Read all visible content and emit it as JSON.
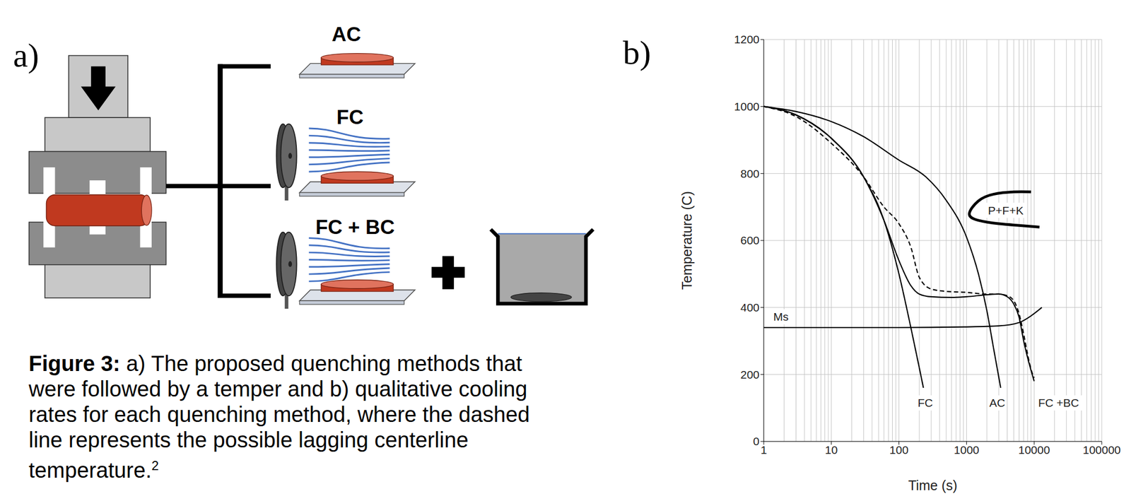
{
  "panel_a": {
    "letter": "a)",
    "methods": [
      "AC",
      "FC",
      "FC + BC"
    ]
  },
  "panel_b": {
    "letter": "b)"
  },
  "caption": {
    "label": "Figure 3:",
    "lines": [
      " a) The proposed quenching methods that",
      "were followed by a temper and b) qualitative cooling",
      "rates for each quenching method, where the dashed",
      "line represents the possible lagging centerline",
      "temperature."
    ],
    "citation": "2"
  },
  "chart_data": {
    "type": "line",
    "xlabel": "Time (s)",
    "ylabel": "Temperature (C)",
    "log": "x",
    "grid": true,
    "xlim": [
      1,
      100000
    ],
    "xticks": [
      1,
      10,
      100,
      1000,
      10000,
      100000
    ],
    "ylim": [
      0,
      1200
    ],
    "yticks": [
      0,
      200,
      400,
      600,
      800,
      1000,
      1200
    ],
    "series": [
      {
        "color": "#000000",
        "line_style": "solid",
        "x": [
          1,
          3,
          10,
          30,
          60,
          100,
          150,
          200,
          230
        ],
        "values": [
          1000,
          975,
          905,
          790,
          660,
          500,
          340,
          220,
          160
        ]
      },
      {
        "color": "#000000",
        "line_style": "solid",
        "x": [
          1,
          3,
          10,
          30,
          60,
          100,
          150,
          200,
          300,
          600,
          1000,
          2000,
          3000,
          4000,
          5000,
          6000,
          7000,
          8500,
          10000
        ],
        "values": [
          1000,
          975,
          905,
          790,
          660,
          540,
          465,
          440,
          432,
          430,
          432,
          438,
          440,
          432,
          410,
          370,
          300,
          230,
          180
        ]
      },
      {
        "color": "#000000",
        "line_style": "dashed",
        "x": [
          1,
          3,
          10,
          30,
          60,
          100,
          150,
          200,
          300,
          500,
          1000,
          2000,
          3000,
          4000,
          5000,
          6000,
          7000,
          8000,
          9000,
          10000
        ],
        "values": [
          1000,
          970,
          890,
          790,
          700,
          650,
          580,
          490,
          455,
          448,
          445,
          440,
          440,
          435,
          420,
          380,
          320,
          260,
          215,
          190
        ]
      },
      {
        "color": "#000000",
        "line_style": "solid",
        "x": [
          1,
          3,
          10,
          30,
          100,
          250,
          500,
          1000,
          1500,
          2000,
          2500,
          3200
        ],
        "values": [
          1000,
          985,
          955,
          910,
          840,
          790,
          720,
          610,
          500,
          390,
          280,
          160
        ]
      },
      {
        "color": "#000000",
        "line_style": "solid",
        "x": [
          1,
          10,
          100,
          1000,
          3000,
          6000,
          9000,
          13000
        ],
        "values": [
          340,
          340,
          340,
          342,
          345,
          355,
          375,
          400
        ]
      },
      {
        "color": "#000000",
        "line_style": "bold",
        "x": [
          9000,
          5000,
          2500,
          1500,
          1100,
          1500,
          3000,
          6000,
          12000
        ],
        "values": [
          745,
          745,
          738,
          718,
          680,
          660,
          650,
          645,
          640
        ]
      }
    ],
    "annotations": [
      {
        "text": "FC",
        "x": 245,
        "y": 115
      },
      {
        "text": "AC",
        "x": 2840,
        "y": 115
      },
      {
        "text": "FC +BC",
        "x": 23000,
        "y": 115
      },
      {
        "text": "Ms",
        "x": 1.8,
        "y": 372
      },
      {
        "text": "P+F+K",
        "x": 3800,
        "y": 690
      }
    ]
  }
}
